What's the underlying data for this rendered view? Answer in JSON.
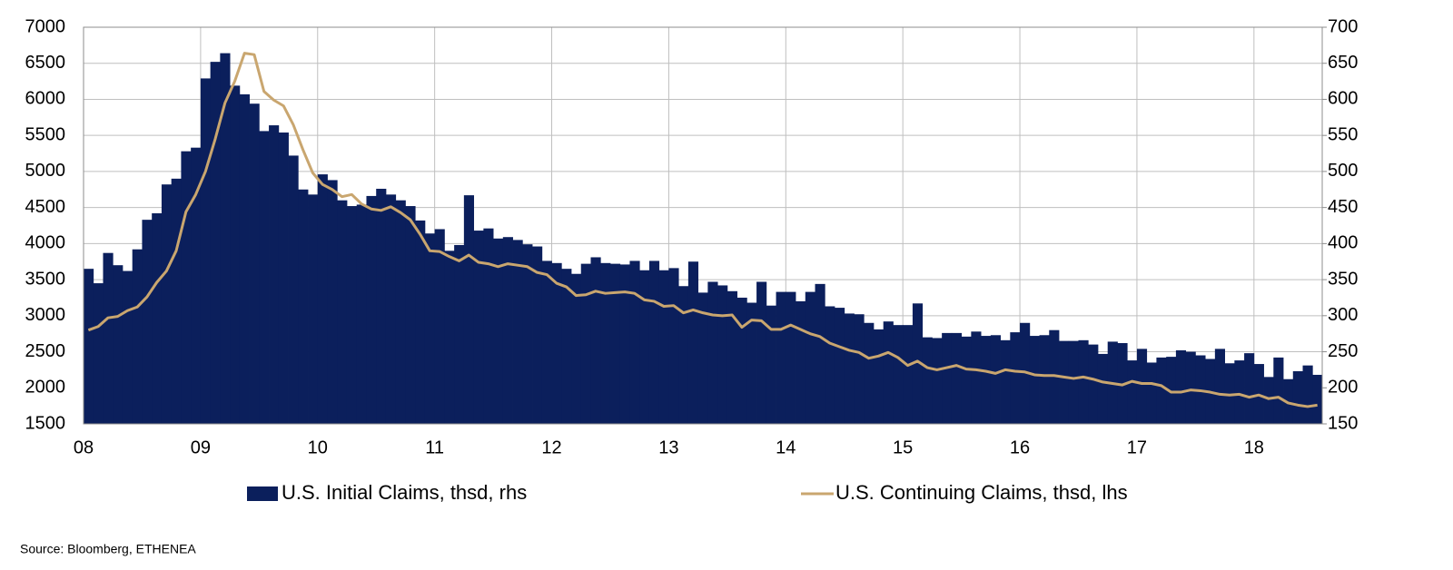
{
  "chart_data": {
    "type": "combo",
    "categories": [
      "08",
      null,
      null,
      null,
      null,
      null,
      null,
      null,
      null,
      null,
      null,
      null,
      "09",
      null,
      null,
      null,
      null,
      null,
      null,
      null,
      null,
      null,
      null,
      null,
      "10",
      null,
      null,
      null,
      null,
      null,
      null,
      null,
      null,
      null,
      null,
      null,
      "11",
      null,
      null,
      null,
      null,
      null,
      null,
      null,
      null,
      null,
      null,
      null,
      "12",
      null,
      null,
      null,
      null,
      null,
      null,
      null,
      null,
      null,
      null,
      null,
      "13",
      null,
      null,
      null,
      null,
      null,
      null,
      null,
      null,
      null,
      null,
      null,
      "14",
      null,
      null,
      null,
      null,
      null,
      null,
      null,
      null,
      null,
      null,
      null,
      "15",
      null,
      null,
      null,
      null,
      null,
      null,
      null,
      null,
      null,
      null,
      null,
      "16",
      null,
      null,
      null,
      null,
      null,
      null,
      null,
      null,
      null,
      null,
      null,
      "17",
      null,
      null,
      null,
      null,
      null,
      null,
      null,
      null,
      null,
      null,
      null,
      "18",
      null,
      null,
      null,
      null,
      null,
      null
    ],
    "series": [
      {
        "name": "U.S. Initial Claims, thsd, rhs",
        "type": "bar",
        "axis": "y2",
        "color": "#0b1f5c",
        "values": [
          365,
          345,
          387,
          370,
          362,
          392,
          433,
          442,
          482,
          490,
          528,
          533,
          629,
          652,
          664,
          619,
          607,
          594,
          556,
          564,
          554,
          522,
          475,
          468,
          496,
          488,
          460,
          452,
          454,
          466,
          476,
          468,
          460,
          452,
          432,
          414,
          420,
          390,
          398,
          467,
          418,
          421,
          407,
          409,
          405,
          399,
          396,
          376,
          373,
          365,
          358,
          372,
          381,
          373,
          372,
          371,
          376,
          363,
          376,
          363,
          366,
          341,
          375,
          332,
          347,
          342,
          334,
          325,
          318,
          347,
          314,
          333,
          333,
          320,
          333,
          344,
          313,
          311,
          303,
          302,
          290,
          281,
          292,
          287,
          287,
          317,
          270,
          269,
          276,
          276,
          271,
          278,
          272,
          273,
          266,
          277,
          290,
          272,
          273,
          280,
          265,
          265,
          266,
          260,
          247,
          264,
          262,
          238,
          254,
          235,
          242,
          243,
          252,
          250,
          245,
          240,
          254,
          234,
          238,
          248,
          233,
          215,
          242,
          212,
          223,
          231,
          218
        ]
      },
      {
        "name": "U.S. Continuing Claims, thsd, lhs",
        "type": "line",
        "color": "#c9a66f",
        "values": [
          2800,
          2850,
          2970,
          2990,
          3070,
          3120,
          3260,
          3460,
          3620,
          3900,
          4440,
          4680,
          5000,
          5450,
          5950,
          6250,
          6640,
          6620,
          6110,
          5990,
          5910,
          5650,
          5300,
          4980,
          4820,
          4750,
          4650,
          4680,
          4550,
          4480,
          4460,
          4510,
          4430,
          4330,
          4130,
          3900,
          3890,
          3820,
          3760,
          3840,
          3740,
          3720,
          3680,
          3720,
          3700,
          3680,
          3600,
          3570,
          3450,
          3400,
          3280,
          3290,
          3340,
          3310,
          3320,
          3330,
          3310,
          3220,
          3200,
          3130,
          3140,
          3040,
          3080,
          3040,
          3010,
          3000,
          3010,
          2840,
          2940,
          2930,
          2810,
          2810,
          2870,
          2810,
          2750,
          2710,
          2620,
          2570,
          2520,
          2490,
          2410,
          2440,
          2490,
          2420,
          2310,
          2370,
          2280,
          2250,
          2280,
          2310,
          2260,
          2250,
          2230,
          2200,
          2250,
          2230,
          2220,
          2180,
          2170,
          2170,
          2150,
          2130,
          2150,
          2120,
          2080,
          2060,
          2040,
          2090,
          2060,
          2060,
          2030,
          1940,
          1940,
          1970,
          1960,
          1940,
          1910,
          1900,
          1910,
          1870,
          1900,
          1850,
          1870,
          1790,
          1760,
          1740,
          1760
        ]
      }
    ],
    "ylim": [
      1500,
      7000
    ],
    "yticks": [
      1500,
      2000,
      2500,
      3000,
      3500,
      4000,
      4500,
      5000,
      5500,
      6000,
      6500,
      7000
    ],
    "y2lim": [
      150,
      700
    ],
    "y2ticks": [
      150,
      200,
      250,
      300,
      350,
      400,
      450,
      500,
      550,
      600,
      650,
      700
    ],
    "grid": true,
    "legend": "bottom",
    "source": "Source: Bloomberg, ETHENEA"
  }
}
